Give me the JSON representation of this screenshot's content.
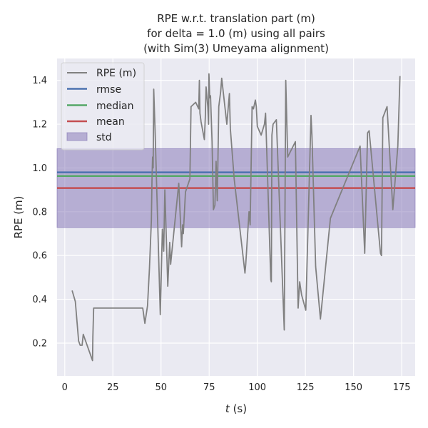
{
  "chart_data": {
    "type": "line",
    "title_lines": [
      "RPE w.r.t. translation part (m)",
      "for delta = 1.0 (m) using all pairs",
      "(with Sim(3) Umeyama alignment)"
    ],
    "xlabel_italic": "t",
    "xlabel_rest": " (s)",
    "ylabel": "RPE (m)",
    "xlim": [
      -4,
      182
    ],
    "ylim": [
      0.05,
      1.5
    ],
    "xticks": [
      0,
      25,
      50,
      75,
      100,
      125,
      150,
      175
    ],
    "yticks": [
      0.2,
      0.4,
      0.6,
      0.8,
      1.0,
      1.2,
      1.4
    ],
    "grid": true,
    "legend_position": "upper-left",
    "colors": {
      "background": "#eaeaf2",
      "grid": "#ffffff",
      "series": "#808080",
      "rmse": "#4c72b0",
      "median": "#55a868",
      "mean": "#c44e52",
      "std": "#8172b3"
    },
    "series": [
      {
        "name": "RPE (m)",
        "x": [
          3.8,
          5.5,
          7.2,
          8.0,
          9.0,
          9.6,
          14.4,
          14.6,
          15.0,
          40.5,
          41.6,
          43.0,
          44.0,
          45.0,
          45.3,
          45.6,
          45.9,
          46.2,
          47.0,
          49.6,
          50.7,
          51.4,
          52.0,
          53.5,
          54.5,
          55.0,
          59.2,
          60.7,
          61.2,
          61.6,
          62.7,
          65.0,
          65.6,
          68.0,
          69.6,
          69.9,
          70.2,
          70.8,
          72.5,
          73.0,
          73.4,
          74.3,
          74.7,
          74.9,
          75.3,
          75.7,
          76.5,
          77.2,
          78.0,
          78.6,
          79.2,
          80.0,
          81.0,
          81.5,
          84.2,
          85.5,
          86.0,
          88.0,
          93.6,
          94.0,
          95.7,
          96.3,
          97.3,
          98.0,
          99.0,
          99.5,
          100.0,
          102.0,
          103.7,
          104.3,
          107.0,
          107.3,
          107.6,
          108.2,
          109.9,
          114.0,
          114.8,
          115.8,
          119.8,
          121.2,
          122.0,
          123.0,
          125.2,
          127.9,
          128.4,
          130.3,
          132.8,
          138.0,
          153.4,
          155.8,
          157.3,
          158.1,
          164.0,
          164.5,
          165.2,
          167.4,
          170.4,
          173.0,
          174.1
        ],
        "values": [
          0.44,
          0.39,
          0.21,
          0.19,
          0.19,
          0.24,
          0.12,
          0.23,
          0.36,
          0.36,
          0.29,
          0.37,
          0.54,
          0.76,
          0.95,
          1.05,
          1.0,
          1.36,
          1.15,
          0.33,
          0.72,
          0.62,
          0.9,
          0.46,
          0.66,
          0.56,
          0.93,
          0.64,
          0.74,
          0.7,
          0.89,
          0.95,
          1.28,
          1.3,
          1.27,
          1.4,
          1.25,
          1.21,
          1.13,
          1.23,
          1.37,
          1.28,
          1.2,
          1.43,
          1.32,
          1.33,
          1.12,
          0.81,
          0.83,
          1.03,
          0.85,
          1.28,
          1.35,
          1.41,
          1.2,
          1.34,
          1.18,
          0.95,
          0.52,
          0.56,
          0.8,
          0.74,
          1.28,
          1.27,
          1.31,
          1.28,
          1.19,
          1.15,
          1.2,
          1.25,
          0.49,
          0.48,
          1.15,
          1.2,
          1.22,
          0.26,
          1.4,
          1.05,
          1.12,
          0.36,
          0.48,
          0.42,
          0.35,
          1.24,
          1.15,
          0.55,
          0.31,
          0.77,
          1.1,
          0.61,
          1.16,
          1.17,
          0.61,
          0.6,
          1.23,
          1.28,
          0.81,
          1.1,
          1.42
        ]
      }
    ],
    "stats": [
      {
        "name": "rmse",
        "value": 0.98,
        "color": "#4c72b0"
      },
      {
        "name": "median",
        "value": 0.963,
        "color": "#55a868"
      },
      {
        "name": "mean",
        "value": 0.908,
        "color": "#c44e52"
      }
    ],
    "std_band": {
      "name": "std",
      "lower": 0.728,
      "upper": 1.088,
      "color": "#8172b3"
    }
  }
}
